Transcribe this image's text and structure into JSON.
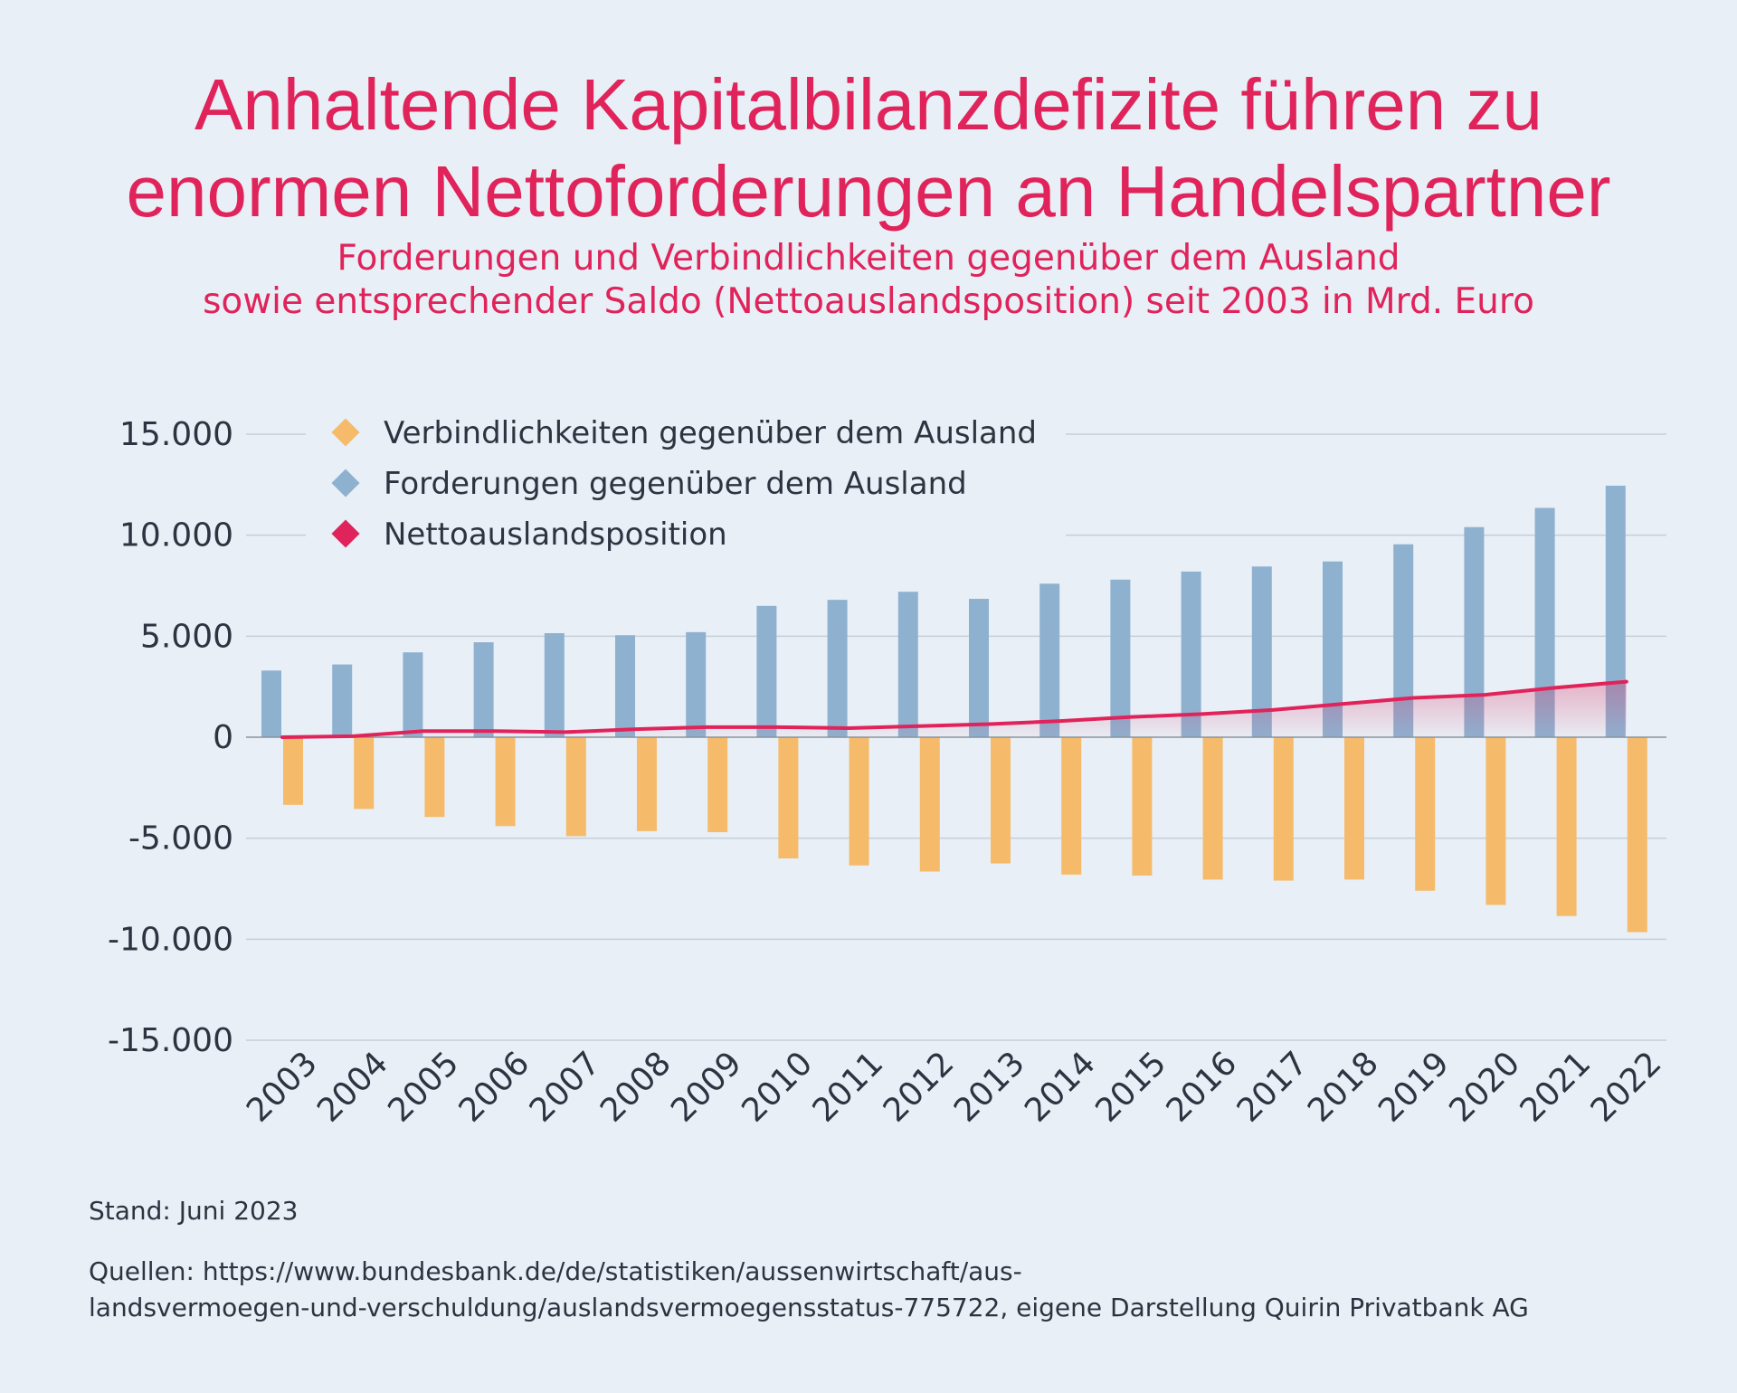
{
  "title": {
    "line1": "Anhaltende Kapitalbilanzdefizite führen zu",
    "line2": "enormen Nettoforderungen an Handelspartner"
  },
  "subtitle": {
    "line1": "Forderungen und Verbindlichkeiten gegenüber dem Ausland",
    "line2": "sowie entsprechender Saldo (Nettoauslandsposition) seit 2003 in Mrd. Euro"
  },
  "footer": {
    "stand": "Stand: Juni 2023",
    "source_line1": "Quellen: https://www.bundesbank.de/de/statistiken/aussenwirtschaft/aus-",
    "source_line2": "landsvermoegen-und-verschuldung/auslandsvermoegensstatus-775722, eigene Darstellung Quirin Privatbank AG"
  },
  "colors": {
    "title": "#e0235a",
    "liabilities": "#f5bb6b",
    "assets": "#8fb1d0",
    "net": "#e0235a",
    "grid": "#c5cfd9",
    "background": "#e8eff6"
  },
  "chart_data": {
    "type": "bar",
    "ylim": [
      -15000,
      15000
    ],
    "yticks": [
      15000,
      10000,
      5000,
      0,
      -5000,
      -10000,
      -15000
    ],
    "ytick_labels": [
      "15.000",
      "10.000",
      "5.000",
      "0",
      "-5.000",
      "-10.000",
      "-15.000"
    ],
    "categories": [
      "2003",
      "2004",
      "2005",
      "2006",
      "2007",
      "2008",
      "2009",
      "2010",
      "2011",
      "2012",
      "2013",
      "2014",
      "2015",
      "2016",
      "2017",
      "2018",
      "2019",
      "2020",
      "2021",
      "2022"
    ],
    "legend_position": "top-left",
    "series": [
      {
        "name": "Verbindlichkeiten gegenüber dem Ausland",
        "kind": "bar",
        "color": "#f5bb6b",
        "values": [
          -3350,
          -3550,
          -3950,
          -4400,
          -4900,
          -4650,
          -4700,
          -6000,
          -6350,
          -6650,
          -6250,
          -6800,
          -6850,
          -7050,
          -7100,
          -7050,
          -7600,
          -8300,
          -8850,
          -9650
        ]
      },
      {
        "name": "Forderungen gegenüber dem Ausland",
        "kind": "bar",
        "color": "#8fb1d0",
        "values": [
          3300,
          3600,
          4200,
          4700,
          5150,
          5050,
          5200,
          6500,
          6800,
          7200,
          6850,
          7600,
          7800,
          8200,
          8450,
          8700,
          9550,
          10400,
          11350,
          12450
        ]
      },
      {
        "name": "Nettoauslandsposition",
        "kind": "line",
        "color": "#e0235a",
        "values": [
          0,
          50,
          300,
          300,
          250,
          400,
          500,
          500,
          450,
          550,
          650,
          800,
          1000,
          1150,
          1350,
          1650,
          1950,
          2100,
          2450,
          2750
        ]
      }
    ]
  }
}
